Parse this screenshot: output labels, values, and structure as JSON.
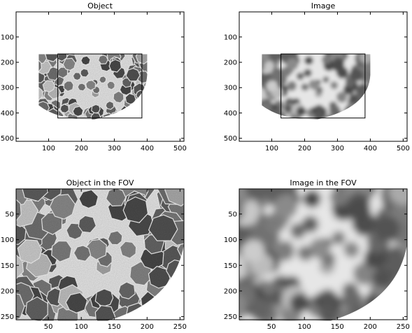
{
  "chart_data": [
    {
      "type": "image",
      "title": "Object",
      "content": "object",
      "blur": false,
      "xlim": [
        1,
        512
      ],
      "ylim": [
        1,
        512
      ],
      "xticks": [
        100,
        200,
        300,
        400,
        500
      ],
      "yticks": [
        100,
        200,
        300,
        400,
        500
      ],
      "fov_box": {
        "x": [
          128,
          384
        ],
        "y": [
          167,
          420
        ]
      }
    },
    {
      "type": "image",
      "title": "Image",
      "content": "object",
      "blur": true,
      "xlim": [
        1,
        512
      ],
      "ylim": [
        1,
        512
      ],
      "xticks": [
        100,
        200,
        300,
        400,
        500
      ],
      "yticks": [
        100,
        200,
        300,
        400,
        500
      ],
      "fov_box": {
        "x": [
          128,
          384
        ],
        "y": [
          167,
          420
        ]
      }
    },
    {
      "type": "image",
      "title": "Object in the FOV",
      "content": "fov",
      "blur": false,
      "xlim": [
        1,
        256
      ],
      "ylim": [
        1,
        256
      ],
      "xticks": [
        50,
        100,
        150,
        200,
        250
      ],
      "yticks": [
        50,
        100,
        150,
        200,
        250
      ]
    },
    {
      "type": "image",
      "title": "Image in the FOV",
      "content": "fov",
      "blur": true,
      "xlim": [
        1,
        256
      ],
      "ylim": [
        1,
        256
      ],
      "xticks": [
        50,
        100,
        150,
        200,
        250
      ],
      "yticks": [
        50,
        100,
        150,
        200,
        250
      ]
    }
  ]
}
